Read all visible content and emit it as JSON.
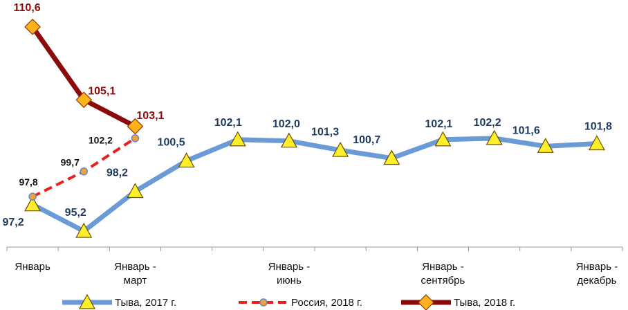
{
  "chart_data": {
    "type": "line",
    "categories": [
      "Январь",
      null,
      "Январь - март",
      null,
      null,
      "Январь - июнь",
      null,
      null,
      "Январь - сентябрь",
      null,
      null,
      "Январь - декабрь"
    ],
    "ylim": [
      94,
      112
    ],
    "legend": "bottom",
    "series": [
      {
        "name": "Тыва, 2017 г.",
        "color": "#6b9bd6",
        "marker": "triangle",
        "values": [
          97.2,
          95.2,
          98.2,
          100.5,
          102.1,
          102.0,
          101.3,
          100.7,
          102.1,
          102.2,
          101.6,
          101.8
        ],
        "value_labels": [
          "97,2",
          "95,2",
          "98,2",
          "100,5",
          "102,1",
          "102,0",
          "101,3",
          "100,7",
          "102,1",
          "102,2",
          "101,6",
          "101,8"
        ]
      },
      {
        "name": "Россия, 2018 г.",
        "color": "#e8211d",
        "marker": "circle",
        "dashed": true,
        "values": [
          97.8,
          99.7,
          102.2,
          null,
          null,
          null,
          null,
          null,
          null,
          null,
          null,
          null
        ],
        "value_labels": [
          "97,8",
          "99,7",
          "102,2",
          null,
          null,
          null,
          null,
          null,
          null,
          null,
          null,
          null
        ]
      },
      {
        "name": "Тыва, 2018 г.",
        "color": "#8b0a0a",
        "marker": "diamond",
        "values": [
          110.6,
          105.1,
          103.1,
          null,
          null,
          null,
          null,
          null,
          null,
          null,
          null,
          null
        ],
        "value_labels": [
          "110,6",
          "105,1",
          "103,1",
          null,
          null,
          null,
          null,
          null,
          null,
          null,
          null,
          null
        ]
      }
    ]
  }
}
